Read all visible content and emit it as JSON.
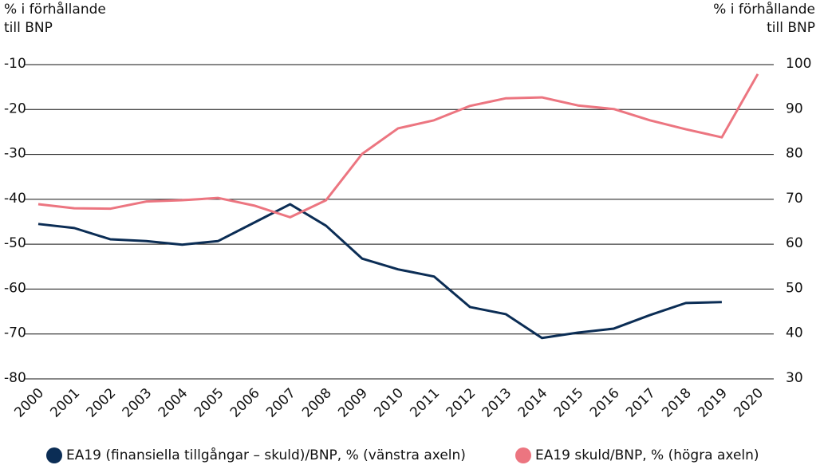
{
  "chart_data": {
    "type": "line",
    "y_label": [
      "% i förhållande",
      "till BNP"
    ],
    "y2_label": [
      "% i förhållande",
      "till BNP"
    ],
    "categories": [
      "2000",
      "2001",
      "2002",
      "2003",
      "2004",
      "2005",
      "2006",
      "2007",
      "2008",
      "2009",
      "2010",
      "2011",
      "2012",
      "2013",
      "2014",
      "2015",
      "2016",
      "2017",
      "2018",
      "2019",
      "2020"
    ],
    "series": [
      {
        "name": "EA19 (finansiella tillgångar – skuld)/BNP, % (vänstra axeln)",
        "color": "#0b2d55",
        "axis": "y",
        "values": [
          -45.5,
          -46.4,
          -48.9,
          -49.3,
          -50.1,
          -49.3,
          -45.2,
          -41.1,
          -45.9,
          -53.2,
          -55.6,
          -57.2,
          -64.0,
          -65.6,
          -70.9,
          -69.7,
          -68.8,
          -65.8,
          -63.1,
          -62.9,
          null
        ]
      },
      {
        "name": "EA19 skuld/BNP, % (högra axeln)",
        "color": "#ec7580",
        "axis": "y2",
        "values": [
          68.9,
          68.0,
          67.9,
          69.5,
          69.8,
          70.3,
          68.6,
          66.0,
          69.8,
          80.1,
          85.8,
          87.6,
          90.8,
          92.5,
          92.7,
          90.9,
          90.1,
          87.6,
          85.6,
          83.8,
          97.9
        ]
      }
    ],
    "ylim": [
      -80,
      -10
    ],
    "yticks": [
      -10,
      -20,
      -30,
      -40,
      -50,
      -60,
      -70,
      -80
    ],
    "y2lim": [
      30,
      100
    ],
    "y2ticks": [
      100,
      90,
      80,
      70,
      60,
      50,
      40,
      30
    ],
    "grid": true
  }
}
